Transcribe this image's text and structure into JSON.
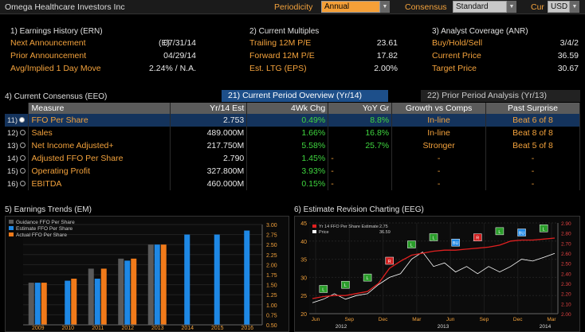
{
  "titlebar": {
    "title": "Omega Healthcare Investors Inc",
    "periodicity_label": "Periodicity",
    "periodicity_value": "Annual",
    "consensus_label": "Consensus",
    "consensus_value": "Standard",
    "cur_label": "Cur",
    "cur_value": "USD"
  },
  "earnings_history": {
    "title": "1) Earnings History (ERN)",
    "rows": [
      {
        "label": "Next Announcement",
        "prefix": "(E)",
        "value": "07/31/14"
      },
      {
        "label": "Prior Announcement",
        "prefix": "",
        "value": "04/29/14"
      },
      {
        "label": "Avg/Implied 1 Day Move",
        "prefix": "",
        "value": "2.24% / N.A."
      }
    ]
  },
  "current_multiples": {
    "title": "2) Current Multiples",
    "rows": [
      {
        "label": "Trailing 12M P/E",
        "value": "23.61"
      },
      {
        "label": "Forward 12M P/E",
        "value": "17.82"
      },
      {
        "label": "Est. LTG (EPS)",
        "value": "2.00%"
      }
    ]
  },
  "analyst_coverage": {
    "title": "3) Analyst Coverage (ANR)",
    "rows": [
      {
        "label": "Buy/Hold/Sell",
        "value": "3/4/2"
      },
      {
        "label": "Current Price",
        "value": "36.59"
      },
      {
        "label": "Target Price",
        "value": "30.67"
      }
    ]
  },
  "consensus": {
    "title": "4) Current Consensus (EEO)",
    "tab_active": "21) Current Period Overview (Yr/14)",
    "tab_inactive": "22) Prior Period Analysis (Yr/13)",
    "headers": [
      "Measure",
      "Yr/14 Est",
      "4Wk Chg",
      "YoY Gr",
      "Growth vs Comps",
      "Past Surprise"
    ],
    "rows": [
      {
        "idx": "11)",
        "measure": "FFO Per Share",
        "est": "2.753",
        "chg": "0.49%",
        "yoy": "8.8%",
        "growth": "In-line",
        "surprise": "Beat 6 of 8",
        "selected": true
      },
      {
        "idx": "12)",
        "measure": "Sales",
        "est": "489.000M",
        "chg": "1.66%",
        "yoy": "16.8%",
        "growth": "In-line",
        "surprise": "Beat 8 of 8",
        "selected": false
      },
      {
        "idx": "13)",
        "measure": "Net Income Adjusted+",
        "est": "217.750M",
        "chg": "5.58%",
        "yoy": "25.7%",
        "growth": "Stronger",
        "surprise": "Beat 5 of 8",
        "selected": false
      },
      {
        "idx": "14)",
        "measure": "Adjusted FFO Per Share",
        "est": "2.790",
        "chg": "1.45%",
        "yoy": "-",
        "growth": "-",
        "surprise": "-",
        "selected": false
      },
      {
        "idx": "15)",
        "measure": "Operating Profit",
        "est": "327.800M",
        "chg": "3.93%",
        "yoy": "-",
        "growth": "-",
        "surprise": "-",
        "selected": false
      },
      {
        "idx": "16)",
        "measure": "EBITDA",
        "est": "460.000M",
        "chg": "0.15%",
        "yoy": "-",
        "growth": "-",
        "surprise": "-",
        "selected": false
      }
    ]
  },
  "earnings_trends": {
    "title": "5) Earnings Trends (EM)",
    "colors": {
      "guidance": "#5a5a5a",
      "estimate": "#1e88e5",
      "actual": "#f07a1a"
    }
  },
  "revision_charting": {
    "title": "6) Estimate Revision Charting (EEG)",
    "colors": {
      "estimate": "#e02020",
      "price": "#ffffff"
    }
  },
  "chart_data": [
    {
      "type": "bar",
      "title": "",
      "legend": [
        "Guidance FFO Per Share",
        "Estimate FFO Per Share",
        "Actual FFO Per Share"
      ],
      "legend_position": "top-left",
      "categories": [
        "2009",
        "2010",
        "2011",
        "2012",
        "2013",
        "2014",
        "2015",
        "2016"
      ],
      "series": [
        {
          "name": "Guidance FFO Per Share",
          "values": [
            1.55,
            0.45,
            1.9,
            2.15,
            2.5,
            null,
            null,
            null
          ]
        },
        {
          "name": "Estimate FFO Per Share",
          "values": [
            1.55,
            1.6,
            1.65,
            2.1,
            2.5,
            2.75,
            2.75,
            2.85
          ]
        },
        {
          "name": "Actual FFO Per Share",
          "values": [
            1.55,
            1.65,
            1.9,
            2.15,
            2.5,
            null,
            null,
            null
          ]
        }
      ],
      "yticks": [
        "0.50",
        "0.75",
        "1.00",
        "1.25",
        "1.50",
        "1.75",
        "2.00",
        "2.25",
        "2.50",
        "2.75",
        "3.00"
      ],
      "ylim": [
        0.5,
        3.0
      ],
      "y_axis_side": "right"
    },
    {
      "type": "line",
      "title": "",
      "legend": [
        {
          "name": "Yr 14 FFO Per Share Estimate",
          "value": "2.75"
        },
        {
          "name": "Price",
          "value": "36.59"
        }
      ],
      "legend_position": "top-left",
      "xticks": [
        "Jun",
        "Sep",
        "Dec",
        "Mar",
        "Jun",
        "Sep",
        "Dec",
        "Mar"
      ],
      "xyears": [
        "2012",
        "2013",
        "2014"
      ],
      "yticks_left": [
        "20",
        "25",
        "30",
        "35",
        "40",
        "45"
      ],
      "ylim_left": [
        20,
        45
      ],
      "yticks_right": [
        "2.00",
        "2.10",
        "2.20",
        "2.30",
        "2.40",
        "2.50",
        "2.60",
        "2.70",
        "2.80",
        "2.90"
      ],
      "ylim_right": [
        2.0,
        2.9
      ],
      "series": [
        {
          "name": "Price",
          "values": [
            23,
            24,
            25.5,
            24,
            25,
            25.5,
            28,
            30,
            31,
            35,
            37,
            33,
            34,
            31.5,
            33,
            31,
            33,
            31.5,
            33,
            35,
            34.5,
            35.5,
            36.59
          ]
        },
        {
          "name": "Yr 14 FFO Per Share Estimate",
          "values": [
            2.15,
            2.17,
            2.18,
            2.18,
            2.2,
            2.22,
            2.3,
            2.45,
            2.52,
            2.58,
            2.6,
            2.62,
            2.63,
            2.63,
            2.64,
            2.65,
            2.66,
            2.68,
            2.72,
            2.73,
            2.73,
            2.74,
            2.75
          ]
        }
      ],
      "markers": [
        {
          "label": "L",
          "color": "#2a9d2a"
        },
        {
          "label": "L",
          "color": "#2a9d2a"
        },
        {
          "label": "L",
          "color": "#2a9d2a"
        },
        {
          "label": "R",
          "color": "#d02020"
        },
        {
          "label": "L",
          "color": "#2a9d2a"
        },
        {
          "label": "L",
          "color": "#2a9d2a"
        },
        {
          "label": "BU",
          "color": "#1e88e5"
        },
        {
          "label": "R",
          "color": "#d02020"
        },
        {
          "label": "L",
          "color": "#2a9d2a"
        },
        {
          "label": "BU",
          "color": "#1e88e5"
        },
        {
          "label": "L",
          "color": "#2a9d2a"
        }
      ]
    }
  ]
}
